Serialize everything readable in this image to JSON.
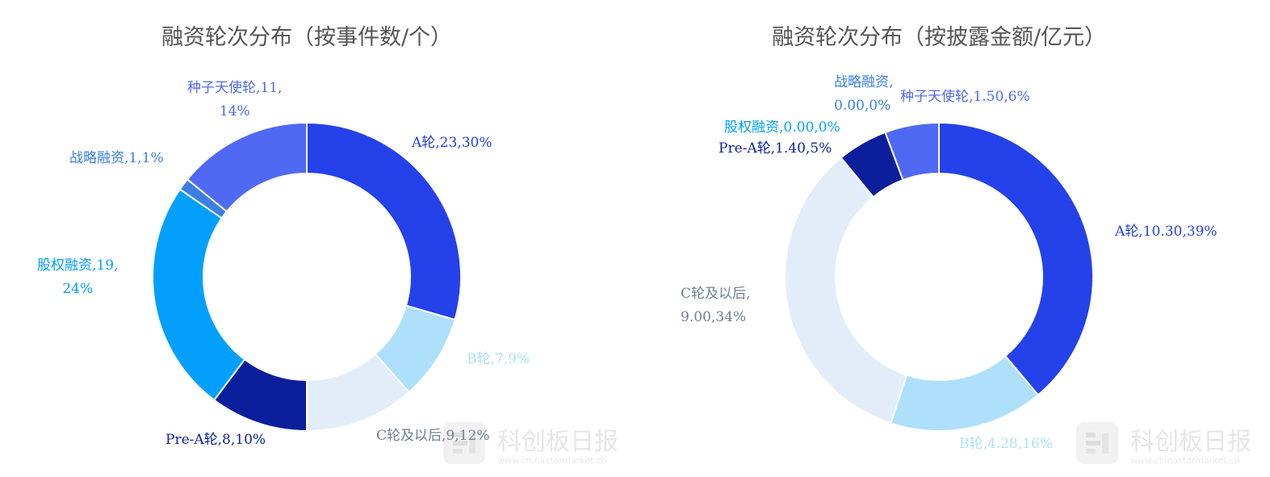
{
  "watermark": {
    "brand": "科创板日报",
    "url": "www.chinastarmarket.cn"
  },
  "chart_data": [
    {
      "type": "pie",
      "donut": true,
      "title": "融资轮次分布（按事件数/个）",
      "slices": [
        {
          "name": "A轮",
          "value": 23,
          "percent": "30%",
          "text": "A轮,23,30%",
          "color": "#2541ea"
        },
        {
          "name": "B轮",
          "value": 7,
          "percent": "9%",
          "text": "B轮,7,9%",
          "color": "#aee0fb"
        },
        {
          "name": "C轮及以后",
          "value": 9,
          "percent": "12%",
          "text": "C轮及以后,9,12%",
          "color": "#e2edf9"
        },
        {
          "name": "Pre-A轮",
          "value": 8,
          "percent": "10%",
          "text": "Pre-A轮,8,10%",
          "color": "#0b1f9c"
        },
        {
          "name": "股权融资",
          "value": 19,
          "percent": "24%",
          "text": [
            "股权融资,19,",
            "24%"
          ],
          "color": "#02a0fc"
        },
        {
          "name": "战略融资",
          "value": 1,
          "percent": "1%",
          "text": "战略融资,1,1%",
          "color": "#3b7fe3"
        },
        {
          "name": "种子天使轮",
          "value": 11,
          "percent": "14%",
          "text": [
            "种子天使轮,11,",
            "14%"
          ],
          "color": "#5069f2"
        }
      ]
    },
    {
      "type": "pie",
      "donut": true,
      "title": "融资轮次分布（按披露金额/亿元）",
      "slices": [
        {
          "name": "A轮",
          "value": 10.3,
          "percent": "39%",
          "text": "A轮,10.30,39%",
          "color": "#2541ea"
        },
        {
          "name": "B轮",
          "value": 4.28,
          "percent": "16%",
          "text": "B轮,4.28,16%",
          "color": "#aee0fb"
        },
        {
          "name": "C轮及以后",
          "value": 9.0,
          "percent": "34%",
          "text": [
            "C轮及以后,",
            "9.00,34%"
          ],
          "color": "#e2edf9"
        },
        {
          "name": "Pre-A轮",
          "value": 1.4,
          "percent": "5%",
          "text": "Pre-A轮,1.40,5%",
          "color": "#0b1f9c"
        },
        {
          "name": "股权融资",
          "value": 0.0,
          "percent": "0%",
          "text": "股权融资,0.00,0%",
          "color": "#02a0fc"
        },
        {
          "name": "战略融资",
          "value": 0.0,
          "percent": "0%",
          "text": [
            "战略融资,",
            "0.00,0%"
          ],
          "color": "#3b7fe3"
        },
        {
          "name": "种子天使轮",
          "value": 1.5,
          "percent": "6%",
          "text": "种子天使轮,1.50,6%",
          "color": "#5069f2"
        }
      ]
    }
  ]
}
